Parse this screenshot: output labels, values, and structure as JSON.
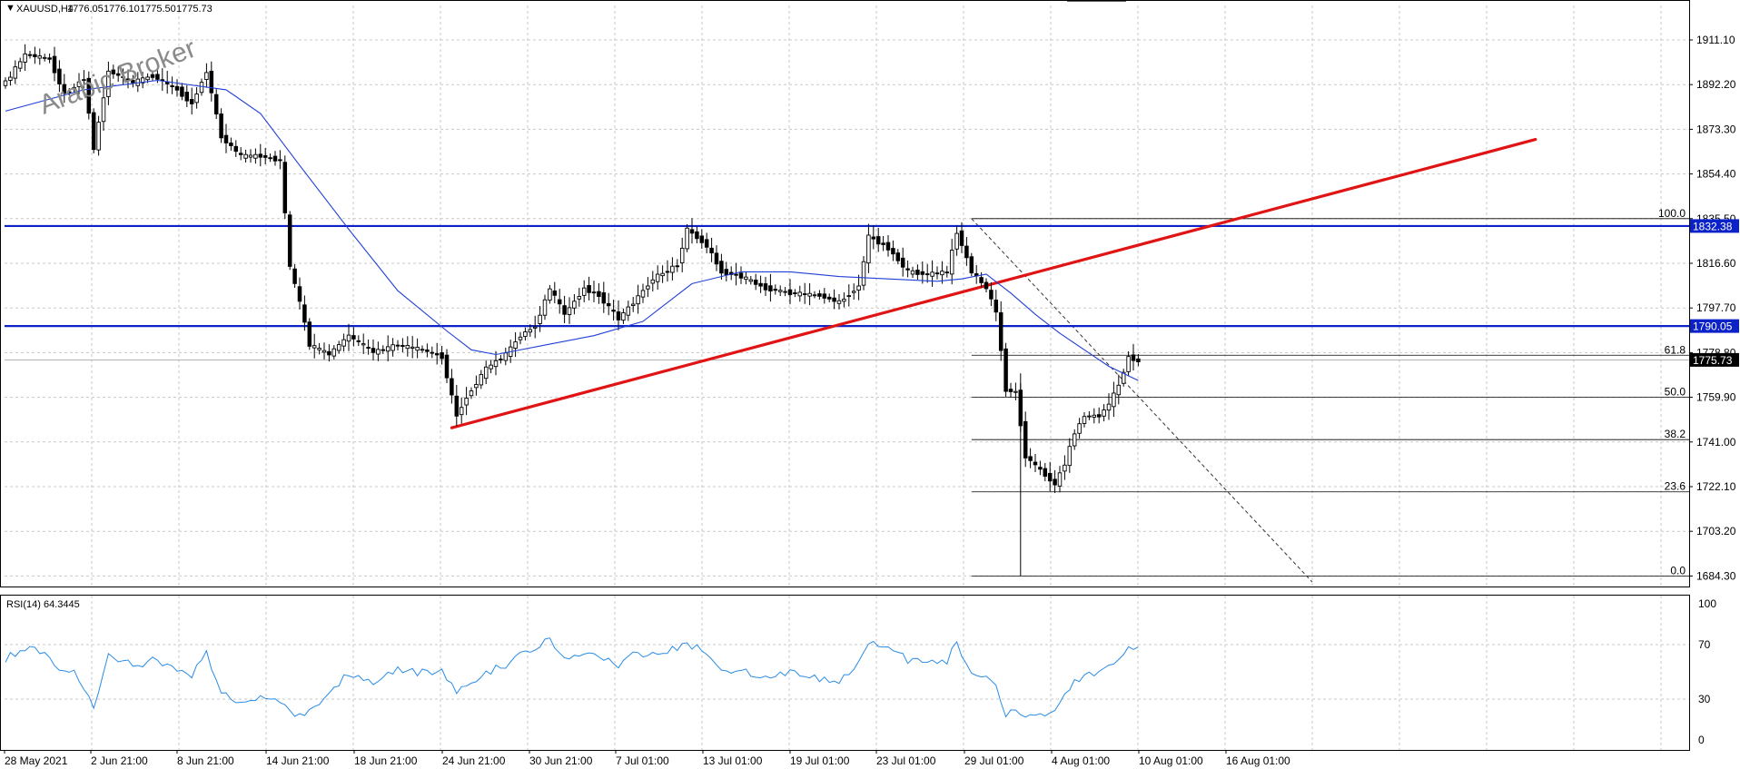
{
  "symbol_header": "XAUUSD,H4",
  "ohlc": [
    "1776.05",
    "1776.10",
    "1775.50",
    "1775.73"
  ],
  "watermark": "Arabic Broker",
  "rsi_header": "RSI(14) 64.3445",
  "colors": {
    "bull": "#000000",
    "bear": "#000000",
    "ma": "#1f3fd6",
    "trendline": "#e01414",
    "hline": "#0a22c8",
    "rsi": "#2a8ce6",
    "fib": "#000000",
    "grid": "#c8c8c8"
  },
  "chart_data": [
    {
      "type": "candlestick",
      "panel": "price",
      "title": "XAUUSD,H4",
      "y_ticks": [
        "1911.10",
        "1892.20",
        "1873.30",
        "1854.40",
        "1835.50",
        "1816.60",
        "1797.70",
        "1778.80",
        "1759.90",
        "1741.00",
        "1722.10",
        "1703.20",
        "1684.30"
      ],
      "x_ticks": [
        "28 May 2021",
        "2 Jun 21:00",
        "8 Jun 21:00",
        "14 Jun 21:00",
        "18 Jun 21:00",
        "24 Jun 21:00",
        "30 Jun 21:00",
        "7 Jul 01:00",
        "13 Jul 01:00",
        "19 Jul 01:00",
        "23 Jul 01:00",
        "29 Jul 01:00",
        "4 Aug 01:00",
        "10 Aug 01:00",
        "16 Aug 01:00"
      ],
      "ylim": [
        1680,
        1922
      ],
      "grid": true,
      "price_path": [
        [
          0,
          1893
        ],
        [
          4,
          1905
        ],
        [
          9,
          1903
        ],
        [
          12,
          1888
        ],
        [
          16,
          1895
        ],
        [
          18,
          1865
        ],
        [
          21,
          1898
        ],
        [
          26,
          1893
        ],
        [
          30,
          1896
        ],
        [
          35,
          1890
        ],
        [
          38,
          1884
        ],
        [
          41,
          1898
        ],
        [
          44,
          1870
        ],
        [
          48,
          1862
        ],
        [
          52,
          1862
        ],
        [
          56,
          1860
        ],
        [
          58,
          1815
        ],
        [
          60,
          1800
        ],
        [
          62,
          1782
        ],
        [
          66,
          1778
        ],
        [
          70,
          1786
        ],
        [
          75,
          1779
        ],
        [
          80,
          1782
        ],
        [
          85,
          1780
        ],
        [
          89,
          1777
        ],
        [
          92,
          1752
        ],
        [
          94,
          1760
        ],
        [
          98,
          1772
        ],
        [
          102,
          1778
        ],
        [
          105,
          1786
        ],
        [
          108,
          1790
        ],
        [
          111,
          1806
        ],
        [
          114,
          1795
        ],
        [
          118,
          1806
        ],
        [
          121,
          1803
        ],
        [
          125,
          1793
        ],
        [
          128,
          1800
        ],
        [
          132,
          1810
        ],
        [
          137,
          1816
        ],
        [
          139,
          1831
        ],
        [
          143,
          1824
        ],
        [
          146,
          1813
        ],
        [
          150,
          1811
        ],
        [
          155,
          1806
        ],
        [
          160,
          1804
        ],
        [
          166,
          1803
        ],
        [
          170,
          1800
        ],
        [
          174,
          1807
        ],
        [
          176,
          1828
        ],
        [
          180,
          1823
        ],
        [
          184,
          1813
        ],
        [
          188,
          1812
        ],
        [
          192,
          1813
        ],
        [
          194,
          1830
        ],
        [
          197,
          1813
        ],
        [
          200,
          1806
        ],
        [
          202,
          1796
        ],
        [
          204,
          1763
        ],
        [
          206,
          1762
        ],
        [
          208,
          1735
        ],
        [
          212,
          1727
        ],
        [
          214,
          1723
        ],
        [
          216,
          1732
        ],
        [
          218,
          1745
        ],
        [
          220,
          1752
        ],
        [
          223,
          1752
        ],
        [
          225,
          1757
        ],
        [
          227,
          1765
        ],
        [
          229,
          1777
        ],
        [
          231,
          1775
        ]
      ],
      "moving_average": [
        [
          0,
          1881
        ],
        [
          16,
          1890
        ],
        [
          31,
          1894
        ],
        [
          45,
          1890
        ],
        [
          52,
          1880
        ],
        [
          60,
          1858
        ],
        [
          70,
          1831
        ],
        [
          80,
          1805
        ],
        [
          90,
          1788
        ],
        [
          95,
          1780
        ],
        [
          100,
          1778
        ],
        [
          110,
          1782
        ],
        [
          120,
          1786
        ],
        [
          130,
          1792
        ],
        [
          140,
          1808
        ],
        [
          150,
          1813
        ],
        [
          160,
          1813
        ],
        [
          170,
          1811
        ],
        [
          180,
          1810
        ],
        [
          190,
          1809
        ],
        [
          195,
          1810
        ],
        [
          200,
          1812
        ],
        [
          205,
          1804
        ],
        [
          210,
          1795
        ],
        [
          215,
          1787
        ],
        [
          220,
          1780
        ],
        [
          225,
          1773
        ],
        [
          231,
          1767
        ]
      ],
      "horizontal_lines": [
        {
          "value": 1832.38,
          "label": "1832.38"
        },
        {
          "value": 1790.05,
          "label": "1790.05"
        }
      ],
      "current_price": {
        "value": 1775.73,
        "label": "1775.73"
      },
      "trendline": [
        [
          91,
          1747
        ],
        [
          312,
          1869
        ]
      ],
      "fibonacci": {
        "anchor_high": [
          197,
          1835.5
        ],
        "anchor_low": [
          207,
          1684.3
        ],
        "levels": [
          {
            "ratio": "100.0",
            "value": 1835.5
          },
          {
            "ratio": "61.8",
            "value": 1777.7
          },
          {
            "ratio": "50.0",
            "value": 1759.9
          },
          {
            "ratio": "38.2",
            "value": 1742.0
          },
          {
            "ratio": "23.6",
            "value": 1719.9
          },
          {
            "ratio": "0.0",
            "value": 1684.3
          }
        ]
      }
    },
    {
      "type": "line",
      "panel": "rsi",
      "title": "RSI(14) 64.3445",
      "y_ticks": [
        "100",
        "70",
        "30",
        "0"
      ],
      "ylim": [
        0,
        100
      ],
      "values_path": [
        [
          0,
          60
        ],
        [
          4,
          68
        ],
        [
          9,
          62
        ],
        [
          12,
          48
        ],
        [
          14,
          50
        ],
        [
          18,
          24
        ],
        [
          21,
          62
        ],
        [
          26,
          55
        ],
        [
          30,
          58
        ],
        [
          35,
          53
        ],
        [
          38,
          47
        ],
        [
          41,
          65
        ],
        [
          44,
          33
        ],
        [
          48,
          28
        ],
        [
          52,
          30
        ],
        [
          56,
          28
        ],
        [
          58,
          22
        ],
        [
          60,
          18
        ],
        [
          62,
          20
        ],
        [
          66,
          33
        ],
        [
          70,
          50
        ],
        [
          75,
          41
        ],
        [
          80,
          52
        ],
        [
          85,
          49
        ],
        [
          89,
          51
        ],
        [
          92,
          35
        ],
        [
          94,
          40
        ],
        [
          98,
          49
        ],
        [
          102,
          55
        ],
        [
          105,
          63
        ],
        [
          108,
          67
        ],
        [
          111,
          74
        ],
        [
          114,
          61
        ],
        [
          118,
          65
        ],
        [
          121,
          60
        ],
        [
          125,
          55
        ],
        [
          128,
          62
        ],
        [
          132,
          64
        ],
        [
          137,
          68
        ],
        [
          139,
          72
        ],
        [
          143,
          62
        ],
        [
          146,
          53
        ],
        [
          150,
          50
        ],
        [
          155,
          48
        ],
        [
          160,
          49
        ],
        [
          166,
          45
        ],
        [
          170,
          44
        ],
        [
          174,
          55
        ],
        [
          176,
          72
        ],
        [
          180,
          70
        ],
        [
          184,
          59
        ],
        [
          188,
          57
        ],
        [
          192,
          58
        ],
        [
          194,
          71
        ],
        [
          197,
          47
        ],
        [
          200,
          48
        ],
        [
          202,
          38
        ],
        [
          204,
          20
        ],
        [
          206,
          19
        ],
        [
          208,
          16
        ],
        [
          212,
          20
        ],
        [
          214,
          24
        ],
        [
          216,
          33
        ],
        [
          218,
          42
        ],
        [
          220,
          48
        ],
        [
          223,
          49
        ],
        [
          225,
          52
        ],
        [
          227,
          57
        ],
        [
          229,
          70
        ],
        [
          231,
          66
        ]
      ]
    }
  ]
}
